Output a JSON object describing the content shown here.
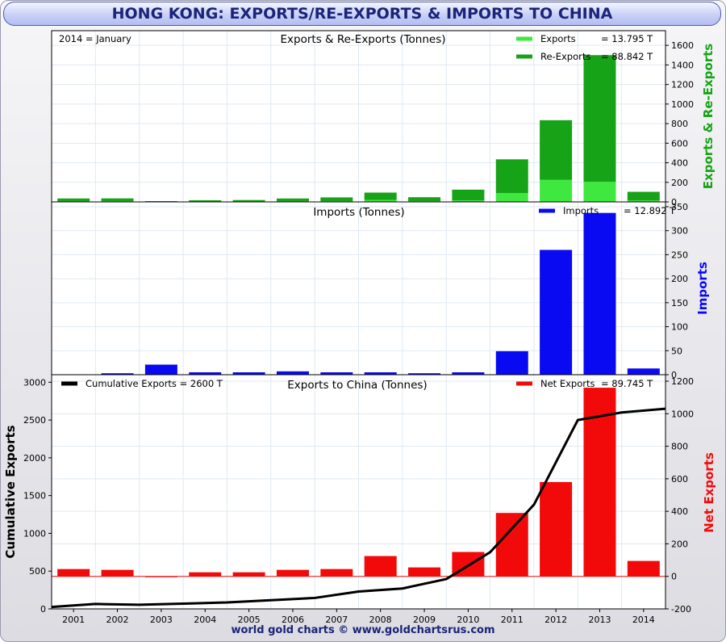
{
  "page": {
    "title": "HONG KONG: EXPORTS/RE-EXPORTS & IMPORTS TO CHINA",
    "footer": "world gold charts © www.goldchartsrus.com"
  },
  "colors": {
    "exports": "#3ee83e",
    "re_exports": "#17a317",
    "imports": "#0a0af2",
    "net_exports": "#f20a0a",
    "cumulative": "#000000",
    "grid": "#dfe9f2",
    "title_text": "#1b2478"
  },
  "chart_data": [
    {
      "type": "bar",
      "stacked": true,
      "title": "Exports & Re-Exports (Tonnes)",
      "annotation": "2014 = January",
      "ylabel_right": "Exports & Re-Exports",
      "categories": [
        "2001",
        "2002",
        "2003",
        "2004",
        "2005",
        "2006",
        "2007",
        "2008",
        "2009",
        "2010",
        "2011",
        "2012",
        "2013",
        "2014"
      ],
      "series": [
        {
          "name": "Exports",
          "legend_value": "= 13.795 T",
          "values": [
            5,
            6,
            2,
            3,
            3,
            5,
            6,
            20,
            8,
            15,
            90,
            225,
            205,
            14
          ]
        },
        {
          "name": "Re-Exports",
          "legend_value": "= 88.842 T",
          "values": [
            30,
            30,
            6,
            14,
            16,
            30,
            40,
            75,
            40,
            110,
            345,
            610,
            1295,
            89
          ]
        }
      ],
      "ylim": [
        0,
        1750
      ],
      "yticks": [
        0,
        200,
        400,
        600,
        800,
        1000,
        1200,
        1400,
        1600
      ],
      "grid": true,
      "legend": "top-right"
    },
    {
      "type": "bar",
      "title": "Imports (Tonnes)",
      "ylabel_right": "Imports",
      "categories": [
        "2001",
        "2002",
        "2003",
        "2004",
        "2005",
        "2006",
        "2007",
        "2008",
        "2009",
        "2010",
        "2011",
        "2012",
        "2013",
        "2014"
      ],
      "series": [
        {
          "name": "Imports",
          "legend_value": "= 12.892 T",
          "values": [
            0,
            3,
            21,
            5,
            5,
            7,
            5,
            5,
            3,
            5,
            49,
            260,
            337,
            13
          ]
        }
      ],
      "ylim": [
        0,
        360
      ],
      "yticks": [
        0,
        50,
        100,
        150,
        200,
        250,
        300,
        350
      ],
      "grid": true,
      "legend": "top-right"
    },
    {
      "type": "bar+line",
      "title": "Exports to China (Tonnes)",
      "ylabel_left": "Cumulative Exports",
      "ylabel_right": "Net Exports",
      "categories": [
        "2001",
        "2002",
        "2003",
        "2004",
        "2005",
        "2006",
        "2007",
        "2008",
        "2009",
        "2010",
        "2011",
        "2012",
        "2013",
        "2014"
      ],
      "bars": {
        "name": "Net Exports",
        "legend_value": "= 89.745 T",
        "axis": "right",
        "values": [
          45,
          40,
          -5,
          25,
          25,
          40,
          45,
          125,
          55,
          150,
          390,
          580,
          1160,
          95
        ]
      },
      "line": {
        "name": "Cumulative Exports",
        "legend_value": "= 2600 T",
        "axis": "left",
        "x": [
          2000.5,
          2001.5,
          2002.5,
          2003.5,
          2004.5,
          2005.5,
          2006.5,
          2007.5,
          2008.5,
          2009.5,
          2010.5,
          2011.5,
          2012.5,
          2013.5,
          2014.5
        ],
        "values": [
          25,
          65,
          55,
          70,
          85,
          115,
          145,
          230,
          270,
          395,
          750,
          1380,
          2500,
          2600,
          2650
        ]
      },
      "ylim_left": [
        0,
        3100
      ],
      "yticks_left": [
        0,
        500,
        1000,
        1500,
        2000,
        2500,
        3000
      ],
      "ylim_right": [
        -200,
        1240
      ],
      "yticks_right": [
        -200,
        0,
        200,
        400,
        600,
        800,
        1000,
        1200
      ],
      "grid": true,
      "legend": "top"
    }
  ]
}
